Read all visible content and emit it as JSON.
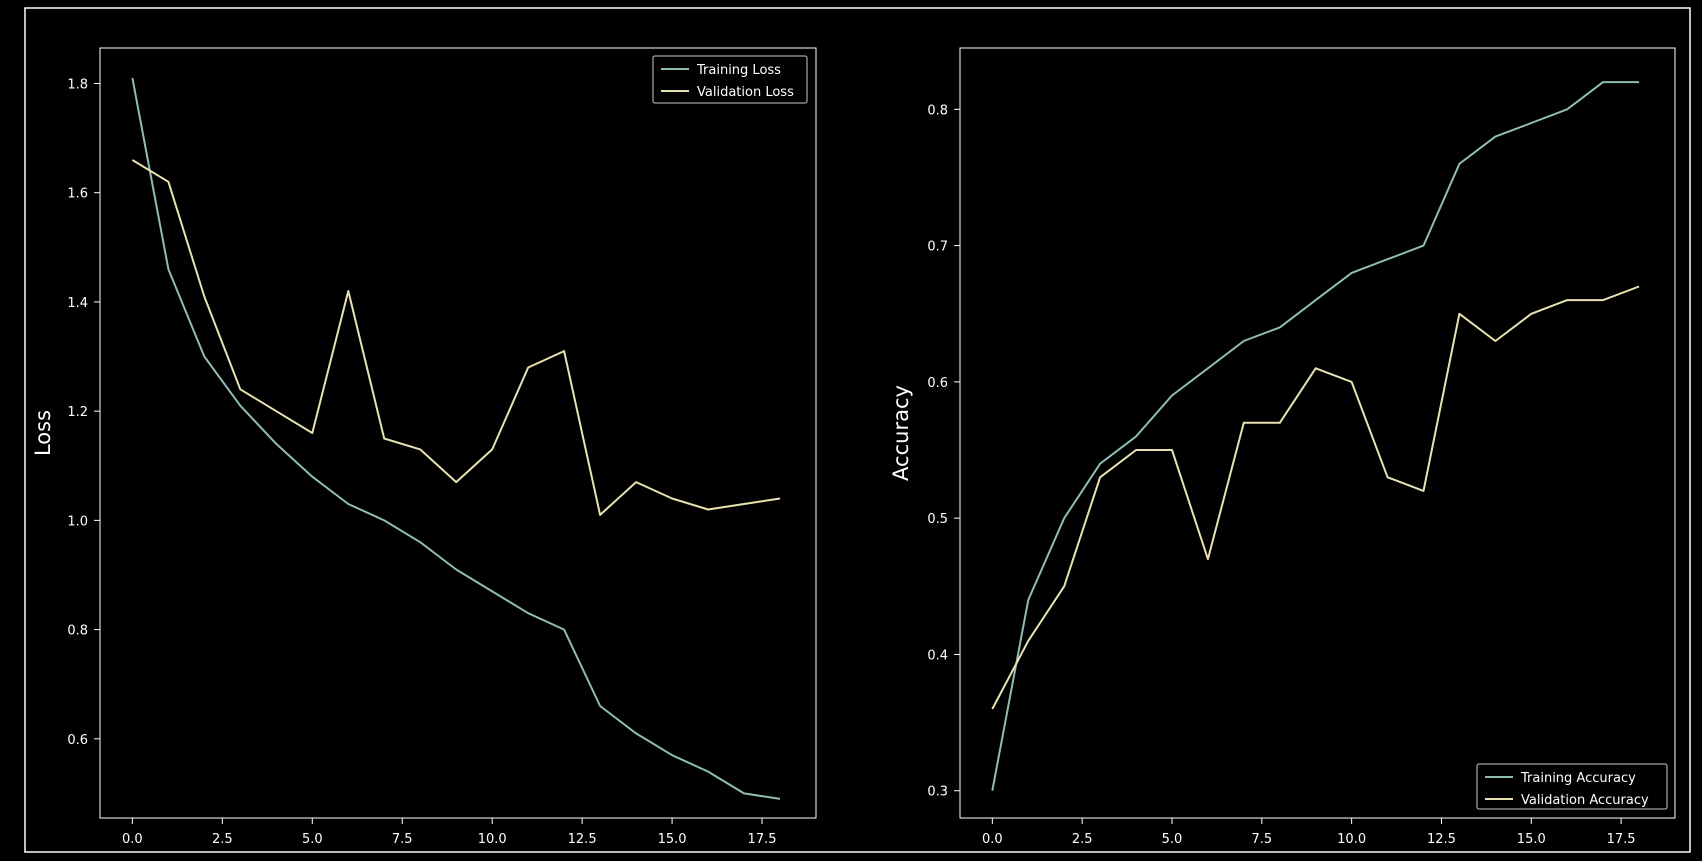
{
  "colors": {
    "background": "#000000",
    "axes": "#ffffff",
    "training": "#8fbcb4",
    "validation": "#e8e2b0",
    "outer_border": "#ffffff"
  },
  "chart_data": [
    {
      "type": "line",
      "title": "",
      "xlabel": "",
      "ylabel": "Loss",
      "xlim": [
        -0.9,
        19.0
      ],
      "ylim": [
        0.455,
        1.865
      ],
      "xticks": [
        0,
        2.5,
        5,
        7.5,
        10,
        12.5,
        15,
        17.5
      ],
      "xtick_labels": [
        "0.0",
        "2.5",
        "5.0",
        "7.5",
        "10.0",
        "12.5",
        "15.0",
        "17.5"
      ],
      "yticks": [
        0.6,
        0.8,
        1.0,
        1.2,
        1.4,
        1.6,
        1.8
      ],
      "ytick_labels": [
        "0.6",
        "0.8",
        "1.0",
        "1.2",
        "1.4",
        "1.6",
        "1.8"
      ],
      "grid": false,
      "legend_position": "top-right",
      "x": [
        0,
        1,
        2,
        3,
        4,
        5,
        6,
        7,
        8,
        9,
        10,
        11,
        12,
        13,
        14,
        15,
        16,
        17,
        18
      ],
      "series": [
        {
          "name": "Training Loss",
          "color_key": "training",
          "values": [
            1.81,
            1.46,
            1.3,
            1.21,
            1.14,
            1.08,
            1.03,
            1.0,
            0.96,
            0.91,
            0.87,
            0.83,
            0.8,
            0.66,
            0.61,
            0.57,
            0.54,
            0.5,
            0.49
          ]
        },
        {
          "name": "Validation Loss",
          "color_key": "validation",
          "values": [
            1.66,
            1.62,
            1.41,
            1.24,
            1.2,
            1.16,
            1.42,
            1.15,
            1.13,
            1.07,
            1.13,
            1.28,
            1.31,
            1.01,
            1.07,
            1.04,
            1.02,
            1.03,
            1.04
          ]
        }
      ]
    },
    {
      "type": "line",
      "title": "",
      "xlabel": "",
      "ylabel": "Accuracy",
      "xlim": [
        -0.9,
        19.0
      ],
      "ylim": [
        0.28,
        0.845
      ],
      "xticks": [
        0,
        2.5,
        5,
        7.5,
        10,
        12.5,
        15,
        17.5
      ],
      "xtick_labels": [
        "0.0",
        "2.5",
        "5.0",
        "7.5",
        "10.0",
        "12.5",
        "15.0",
        "17.5"
      ],
      "yticks": [
        0.3,
        0.4,
        0.5,
        0.6,
        0.7,
        0.8
      ],
      "ytick_labels": [
        "0.3",
        "0.4",
        "0.5",
        "0.6",
        "0.7",
        "0.8"
      ],
      "grid": false,
      "legend_position": "bottom-right",
      "x": [
        0,
        1,
        2,
        3,
        4,
        5,
        6,
        7,
        8,
        9,
        10,
        11,
        12,
        13,
        14,
        15,
        16,
        17,
        18
      ],
      "series": [
        {
          "name": "Training Accuracy",
          "color_key": "training",
          "values": [
            0.3,
            0.44,
            0.5,
            0.54,
            0.56,
            0.59,
            0.61,
            0.63,
            0.64,
            0.66,
            0.68,
            0.69,
            0.7,
            0.76,
            0.78,
            0.79,
            0.8,
            0.82,
            0.82
          ]
        },
        {
          "name": "Validation Accuracy",
          "color_key": "validation",
          "values": [
            0.36,
            0.41,
            0.45,
            0.53,
            0.55,
            0.55,
            0.47,
            0.57,
            0.57,
            0.61,
            0.6,
            0.53,
            0.52,
            0.65,
            0.63,
            0.65,
            0.66,
            0.66,
            0.67
          ]
        }
      ]
    }
  ]
}
